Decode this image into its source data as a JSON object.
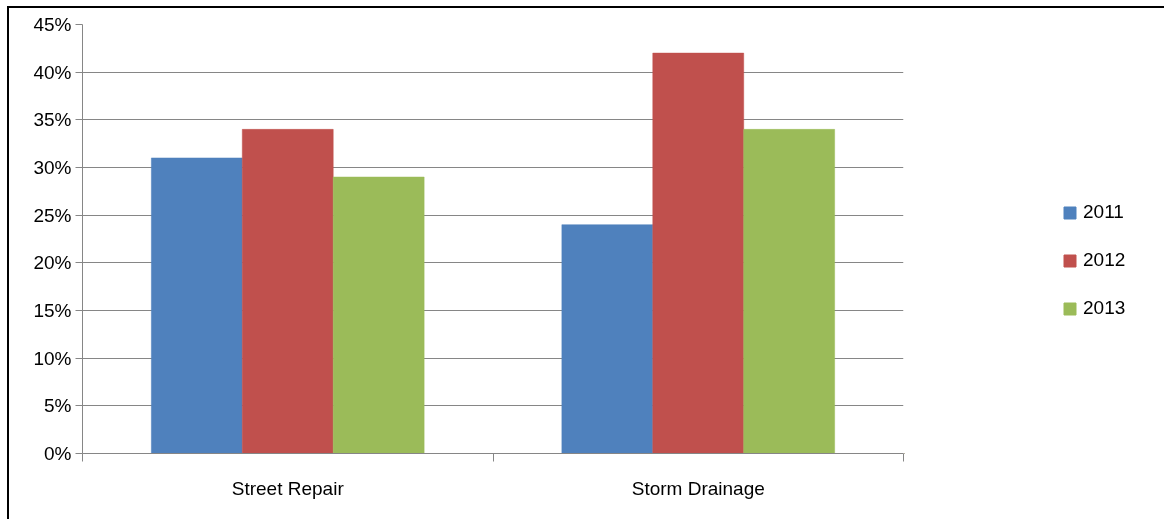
{
  "chart_data": {
    "type": "bar",
    "categories": [
      "Street Repair",
      "Storm Drainage"
    ],
    "series": [
      {
        "name": "2011",
        "color": "#4f81bd",
        "values": [
          31,
          24
        ]
      },
      {
        "name": "2012",
        "color": "#c0504d",
        "values": [
          34,
          42
        ]
      },
      {
        "name": "2013",
        "color": "#9bbb59",
        "values": [
          29,
          34
        ]
      }
    ],
    "ylim": [
      0,
      45
    ],
    "yticks": [
      {
        "value": 0,
        "label": "0%"
      },
      {
        "value": 5,
        "label": "5%"
      },
      {
        "value": 10,
        "label": "10%"
      },
      {
        "value": 15,
        "label": "15%"
      },
      {
        "value": 20,
        "label": "20%"
      },
      {
        "value": 25,
        "label": "25%"
      },
      {
        "value": 30,
        "label": "30%"
      },
      {
        "value": 35,
        "label": "35%"
      },
      {
        "value": 40,
        "label": "40%"
      },
      {
        "value": 45,
        "label": "45%"
      }
    ],
    "grid": "y",
    "legend": "right"
  }
}
